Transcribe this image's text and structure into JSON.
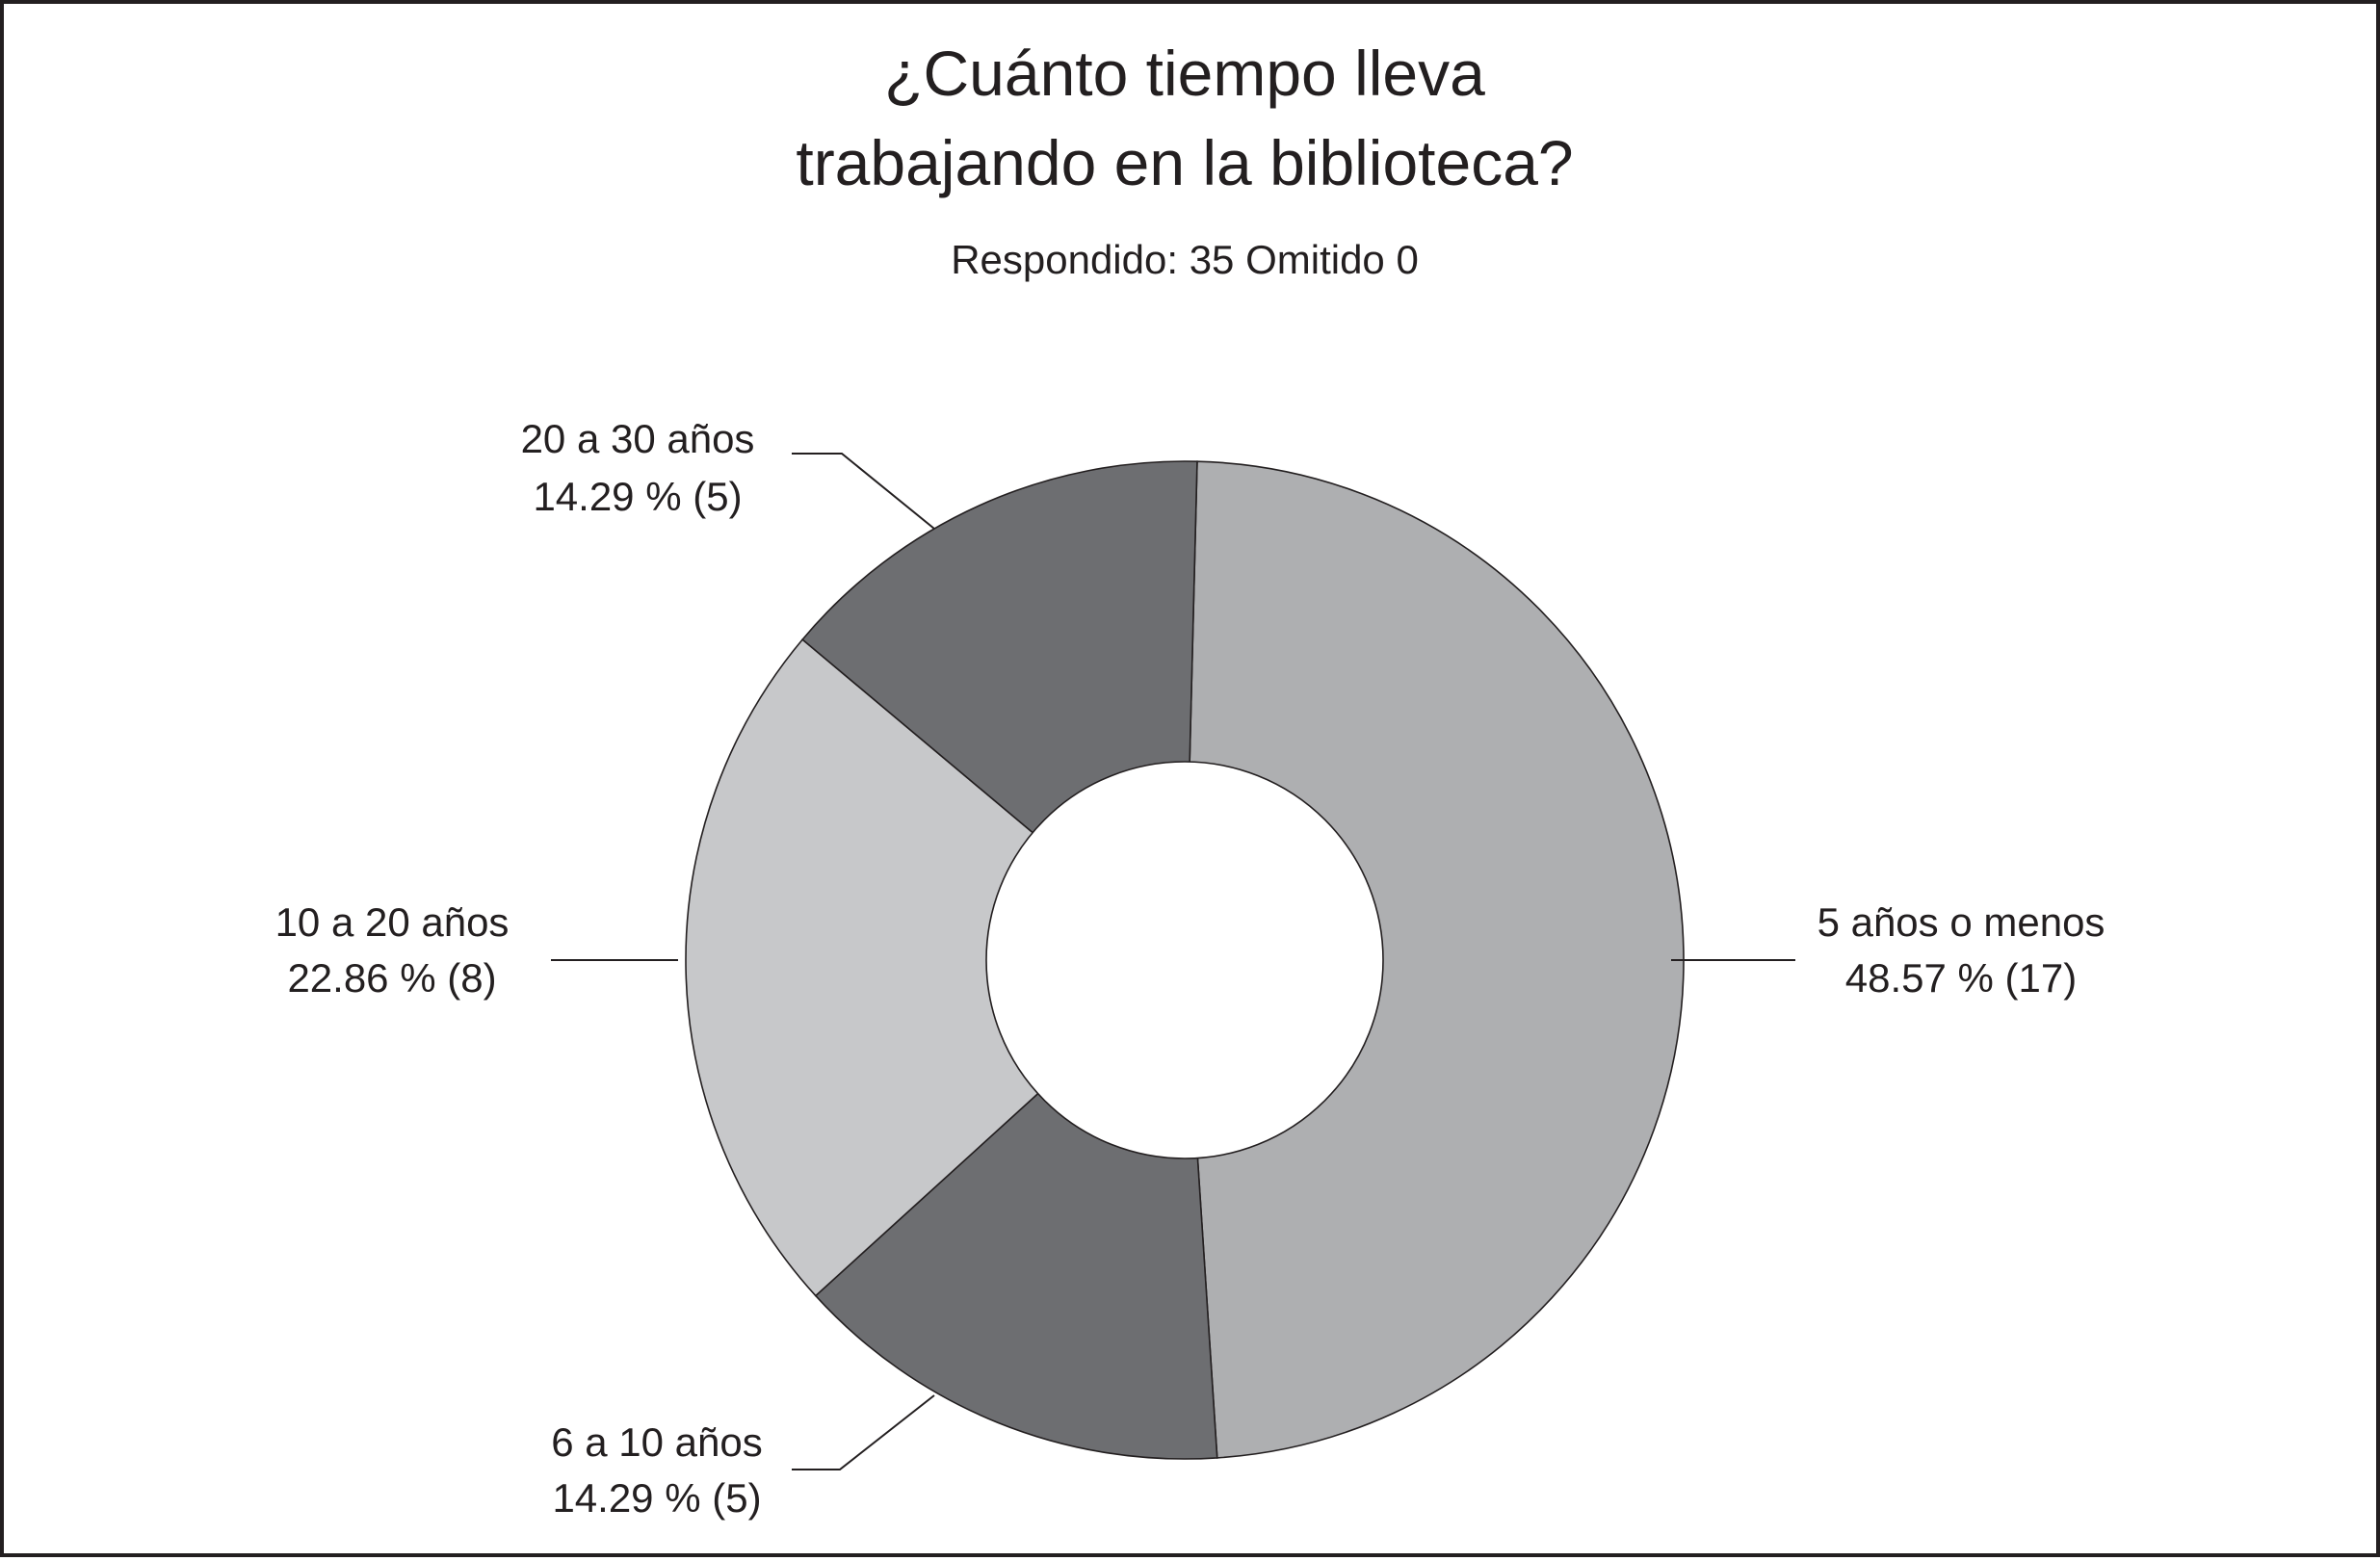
{
  "chart_data": {
    "type": "pie",
    "donut": true,
    "title_lines": [
      "¿Cuánto tiempo lleva",
      "trabajando en la biblioteca?"
    ],
    "subtitle": "Respondido: 35 Omitido 0",
    "slices": [
      {
        "label": "5 años o menos",
        "value_text": "48.57 % (17)",
        "percent": 48.57,
        "count": 17,
        "color": "#aeafb1"
      },
      {
        "label": "6 a 10 años",
        "value_text": "14.29 % (5)",
        "percent": 14.29,
        "count": 5,
        "color": "#6d6e71"
      },
      {
        "label": "10 a 20 años",
        "value_text": "22.86 % (8)",
        "percent": 22.86,
        "count": 8,
        "color": "#c7c8ca"
      },
      {
        "label": "20 a 30 años",
        "value_text": "14.29 % (5)",
        "percent": 14.29,
        "count": 5,
        "color": "#6d6e71"
      }
    ],
    "legend": "none"
  }
}
